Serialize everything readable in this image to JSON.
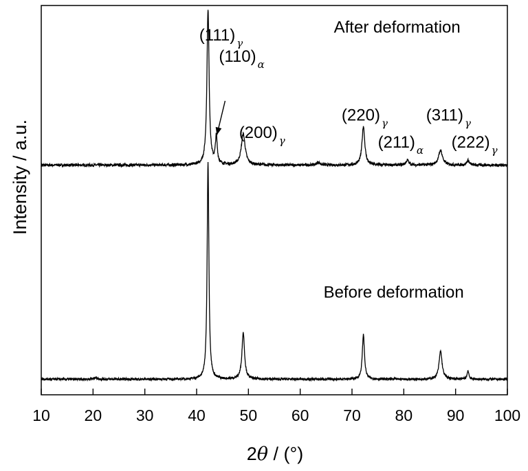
{
  "chart_data": {
    "type": "line",
    "title": "",
    "xlabel": {
      "prefix": "2",
      "symbol": "θ",
      "suffix": " / (°)"
    },
    "ylabel": "Intensity / a.u.",
    "xlim": [
      10,
      100
    ],
    "xticks": [
      10,
      20,
      30,
      40,
      50,
      60,
      70,
      80,
      90,
      100
    ],
    "ylim": [
      0,
      100
    ],
    "grid": false,
    "series": [
      {
        "name": "After deformation",
        "color": "#000000",
        "baseline": 59,
        "noise": 0.35,
        "peaks": [
          {
            "x": 42.2,
            "h": 40,
            "w": 0.25
          },
          {
            "x": 43.8,
            "h": 7,
            "w": 0.22
          },
          {
            "x": 49.0,
            "h": 8,
            "w": 0.45
          },
          {
            "x": 63.5,
            "h": 0.7,
            "w": 0.4
          },
          {
            "x": 72.2,
            "h": 10,
            "w": 0.32
          },
          {
            "x": 80.7,
            "h": 1.3,
            "w": 0.3
          },
          {
            "x": 87.1,
            "h": 3.8,
            "w": 0.45
          },
          {
            "x": 92.4,
            "h": 1.2,
            "w": 0.3
          }
        ]
      },
      {
        "name": "Before deformation",
        "color": "#000000",
        "baseline": 4,
        "noise": 0.3,
        "peaks": [
          {
            "x": 42.2,
            "h": 56,
            "w": 0.2
          },
          {
            "x": 49.0,
            "h": 12,
            "w": 0.3
          },
          {
            "x": 72.2,
            "h": 11.5,
            "w": 0.25
          },
          {
            "x": 87.1,
            "h": 7.2,
            "w": 0.35
          },
          {
            "x": 92.4,
            "h": 2.2,
            "w": 0.2
          },
          {
            "x": 20.5,
            "h": 0.5,
            "w": 0.3
          }
        ]
      }
    ],
    "series_labels": [
      {
        "text": "After deformation",
        "x": 66.5,
        "y": 93
      },
      {
        "text": "Before deformation",
        "x": 64.5,
        "y": 25
      }
    ],
    "annotations": [
      {
        "main": "(111)",
        "sub": "γ",
        "x": 40.5,
        "y": 91
      },
      {
        "main": "(110)",
        "sub": "α",
        "x": 44.3,
        "y": 85.5
      },
      {
        "main": "(200)",
        "sub": "γ",
        "x": 48.2,
        "y": 66
      },
      {
        "main": "(220)",
        "sub": "γ",
        "x": 68.0,
        "y": 70.5
      },
      {
        "main": "(211)",
        "sub": "α",
        "x": 75.0,
        "y": 63.5
      },
      {
        "main": "(311)",
        "sub": "γ",
        "x": 84.3,
        "y": 70.5
      },
      {
        "main": "(222)",
        "sub": "γ",
        "x": 89.2,
        "y": 63.5
      }
    ],
    "arrow": {
      "from": [
        45.5,
        75.5
      ],
      "to": [
        43.9,
        66.7
      ]
    }
  }
}
